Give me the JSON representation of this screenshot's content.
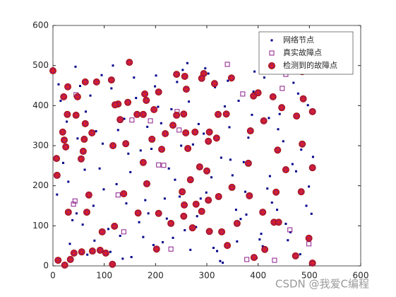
{
  "chart_data": {
    "type": "scatter",
    "xlim": [
      0,
      600
    ],
    "ylim": [
      0,
      600
    ],
    "xticks": [
      0,
      100,
      200,
      300,
      400,
      500,
      600
    ],
    "yticks": [
      0,
      100,
      200,
      300,
      400,
      500,
      600
    ],
    "legend": "northeast",
    "watermark": "CSDN @我爱C编程",
    "series": [
      {
        "name": "网络节点",
        "color": "#00008b",
        "marker": "dot",
        "x": [
          15,
          33,
          48,
          62,
          79,
          95,
          108,
          124,
          139,
          153,
          171,
          186,
          199,
          214,
          231,
          247,
          262,
          279,
          294,
          309,
          326,
          341,
          357,
          372,
          388,
          403,
          418,
          433,
          449,
          463,
          478,
          494,
          507,
          8,
          27,
          44,
          58,
          73,
          91,
          112,
          127,
          143,
          158,
          176,
          192,
          205,
          222,
          238,
          253,
          268,
          284,
          299,
          316,
          331,
          346,
          362,
          377,
          393,
          409,
          423,
          439,
          454,
          469,
          484,
          499,
          20,
          38,
          53,
          67,
          84,
          99,
          117,
          131,
          147,
          162,
          180,
          196,
          211,
          226,
          242,
          257,
          273,
          288,
          303,
          320,
          335,
          350,
          366,
          381,
          397,
          412,
          427,
          442,
          458,
          474,
          489,
          504,
          11,
          30,
          46,
          64,
          81,
          97,
          114,
          136,
          151,
          168,
          184,
          201,
          218,
          234,
          250,
          265,
          281,
          297,
          313,
          328,
          344,
          359,
          375,
          391,
          406,
          421,
          437,
          452,
          467,
          482,
          497
        ],
        "y": [
          412,
          55,
          318,
          240,
          150,
          476,
          92,
          204,
          367,
          22,
          288,
          131,
          448,
          59,
          391,
          173,
          506,
          97,
          330,
          221,
          12,
          462,
          140,
          259,
          377,
          66,
          193,
          503,
          311,
          84,
          430,
          150,
          272,
          178,
          360,
          497,
          103,
          425,
          243,
          35,
          339,
          156,
          470,
          72,
          292,
          397,
          118,
          215,
          489,
          40,
          354,
          183,
          446,
          8,
          265,
          412,
          128,
          485,
          49,
          224,
          341,
          105,
          457,
          290,
          198,
          257,
          114,
          449,
          28,
          336,
          191,
          500,
          75,
          280,
          419,
          164,
          52,
          356,
          243,
          459,
          89,
          303,
          168,
          480,
          37,
          398,
          226,
          117,
          320,
          20,
          470,
          158,
          379,
          64,
          236,
          501,
          130,
          453,
          210,
          131,
          385,
          63,
          305,
          443,
          18,
          234,
          109,
          347,
          475,
          168,
          70,
          300,
          410,
          124,
          493,
          45,
          270,
          346,
          61,
          185,
          435,
          80,
          369,
          140,
          503,
          254,
          29,
          401
        ]
      },
      {
        "name": "真实故障点",
        "color": "#8b1a89",
        "marker": "square",
        "x": [
          45,
          154,
          190,
          242,
          246,
          216,
          206,
          43,
          40,
          127,
          138,
          230,
          340,
          370,
          462,
          499,
          432,
          378,
          454,
          447
        ],
        "y": [
          427,
          364,
          362,
          385,
          339,
          251,
          252,
          162,
          154,
          177,
          85,
          42,
          503,
          429,
          90,
          55,
          14,
          16,
          478,
          443
        ]
      },
      {
        "name": "检测到的故障点",
        "color": "#e0201b",
        "marker": "circle",
        "x": [
          0,
          29,
          48,
          63,
          85,
          114,
          149,
          127,
          146,
          121,
          179,
          206,
          241,
          257,
          294,
          290,
          348,
          315,
          260,
          182,
          197,
          176,
          164,
          45,
          21,
          28,
          63,
          76,
          19,
          22,
          25,
          7,
          8,
          61,
          59,
          55,
          117,
          142,
          131,
          193,
          219,
          212,
          176,
          183,
          70,
          138,
          234,
          241,
          259,
          255,
          277,
          305,
          322,
          319,
          338,
          303,
          263,
          286,
          300,
          268,
          252,
          256,
          279,
          303,
          323,
          349,
          383,
          381,
          385,
          391,
          400,
          429,
          411,
          446,
          438,
          454,
          475,
          488,
          506,
          486,
          506,
          484,
          486,
          409,
          435,
          431,
          440,
          413,
          473,
          506,
          499,
          392,
          340,
          359,
          329,
          305,
          272,
          290,
          230,
          206,
          202,
          255,
          166,
          120,
          96,
          66,
          41,
          30,
          56,
          77,
          92,
          103,
          34,
          23,
          10,
          116
        ],
        "y": [
          487,
          447,
          422,
          459,
          459,
          464,
          508,
          404,
          408,
          402,
          429,
          434,
          478,
          473,
          480,
          468,
          469,
          455,
          441,
          413,
          390,
          378,
          378,
          376,
          422,
          378,
          355,
          332,
          334,
          314,
          297,
          268,
          226,
          316,
          286,
          267,
          300,
          305,
          365,
          316,
          330,
          291,
          258,
          205,
          177,
          180,
          351,
          376,
          332,
          379,
          334,
          334,
          378,
          319,
          379,
          311,
          293,
          247,
          237,
          215,
          185,
          152,
          154,
          164,
          173,
          196,
          175,
          256,
          337,
          424,
          432,
          422,
          362,
          395,
          289,
          240,
          374,
          417,
          385,
          304,
          245,
          185,
          485,
          134,
          184,
          109,
          109,
          41,
          25,
          7,
          69,
          21,
          51,
          106,
          85,
          86,
          95,
          136,
          106,
          131,
          42,
          124,
          132,
          99,
          85,
          134,
          32,
          134,
          35,
          37,
          39,
          32,
          16,
          2,
          14,
          4
        ]
      }
    ]
  }
}
